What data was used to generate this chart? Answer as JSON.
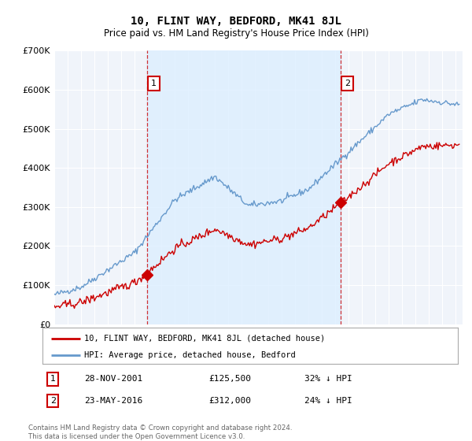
{
  "title": "10, FLINT WAY, BEDFORD, MK41 8JL",
  "subtitle": "Price paid vs. HM Land Registry's House Price Index (HPI)",
  "ylim": [
    0,
    700000
  ],
  "xlim_start": 1995.0,
  "xlim_end": 2025.5,
  "sale1_date": 2001.91,
  "sale1_price": 125500,
  "sale1_label": "1",
  "sale1_display": "28-NOV-2001",
  "sale1_amount": "£125,500",
  "sale1_hpi": "32% ↓ HPI",
  "sale2_date": 2016.39,
  "sale2_price": 312000,
  "sale2_label": "2",
  "sale2_display": "23-MAY-2016",
  "sale2_amount": "£312,000",
  "sale2_hpi": "24% ↓ HPI",
  "property_color": "#cc0000",
  "hpi_color": "#6699cc",
  "shade_color": "#ddeeff",
  "legend_property": "10, FLINT WAY, BEDFORD, MK41 8JL (detached house)",
  "legend_hpi": "HPI: Average price, detached house, Bedford",
  "footnote": "Contains HM Land Registry data © Crown copyright and database right 2024.\nThis data is licensed under the Open Government Licence v3.0.",
  "background_color": "#ffffff",
  "plot_bg_color": "#f0f4fa"
}
